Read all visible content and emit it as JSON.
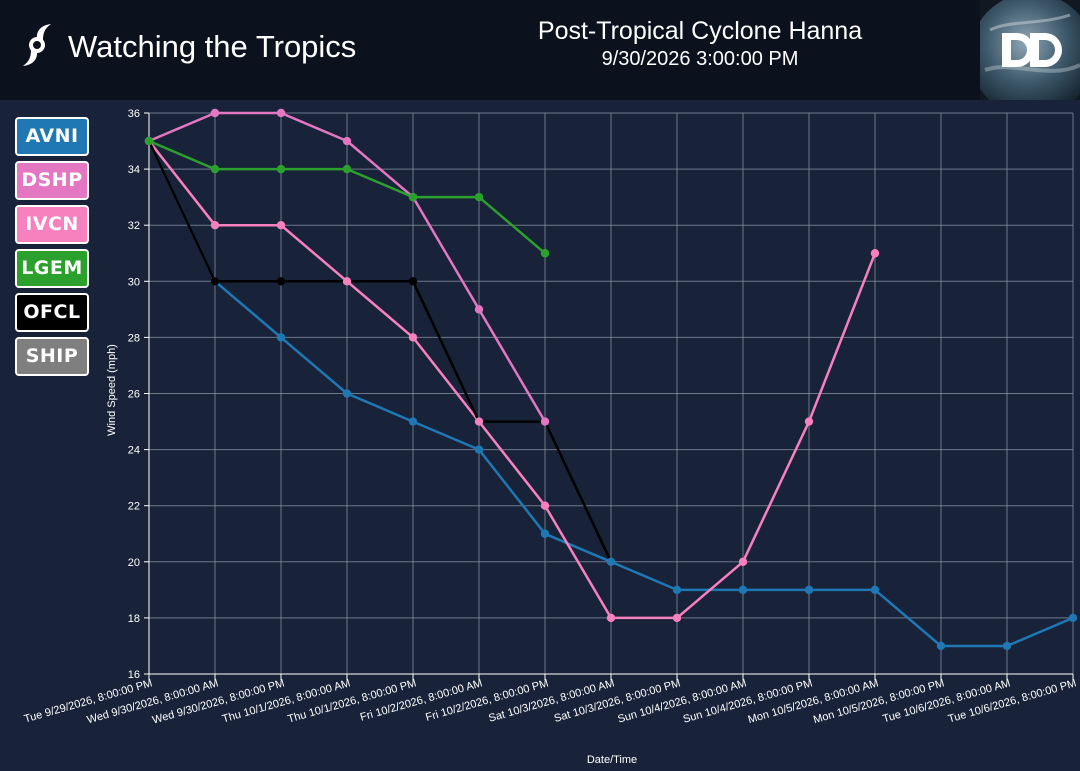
{
  "header": {
    "app_title": "Watching the Tropics",
    "app_icon": "hurricane-icon",
    "storm_name": "Post-Tropical Cyclone Hanna",
    "storm_time": "9/30/2026 3:00:00 PM",
    "logo_icon": "dd-logo-icon"
  },
  "legend": [
    {
      "label": "AVNI",
      "color": "#1f77b4"
    },
    {
      "label": "DSHP",
      "color": "#e377c2"
    },
    {
      "label": "IVCN",
      "color": "#f781bf"
    },
    {
      "label": "LGEM",
      "color": "#2ca02c"
    },
    {
      "label": "OFCL",
      "color": "#000000"
    },
    {
      "label": "SHIP",
      "color": "#7f7f7f"
    }
  ],
  "chart_data": {
    "type": "line",
    "xlabel": "Date/Time",
    "ylabel": "Wind Speed (mph)",
    "ylim": [
      16,
      36
    ],
    "yticks": [
      16,
      18,
      20,
      22,
      24,
      26,
      28,
      30,
      32,
      34,
      36
    ],
    "grid": true,
    "x": [
      "Tue 9/29/2026, 8:00:00 PM",
      "Wed 9/30/2026, 8:00:00 AM",
      "Wed 9/30/2026, 8:00:00 PM",
      "Thu 10/1/2026, 8:00:00 AM",
      "Thu 10/1/2026, 8:00:00 PM",
      "Fri 10/2/2026, 8:00:00 AM",
      "Fri 10/2/2026, 8:00:00 PM",
      "Sat 10/3/2026, 8:00:00 AM",
      "Sat 10/3/2026, 8:00:00 PM",
      "Sun 10/4/2026, 8:00:00 AM",
      "Sun 10/4/2026, 8:00:00 PM",
      "Mon 10/5/2026, 8:00:00 AM",
      "Mon 10/5/2026, 8:00:00 PM",
      "Tue 10/6/2026, 8:00:00 AM",
      "Tue 10/6/2026, 8:00:00 PM"
    ],
    "series": [
      {
        "name": "AVNI",
        "color": "#1f77b4",
        "marker": true,
        "values": [
          35,
          30,
          28,
          26,
          25,
          24,
          21,
          20,
          19,
          19,
          19,
          19,
          17,
          17,
          18
        ]
      },
      {
        "name": "DSHP",
        "color": "#e377c2",
        "marker": true,
        "values": [
          35,
          36,
          36,
          35,
          33,
          29,
          25,
          null,
          null,
          null,
          null,
          null,
          null,
          null,
          null
        ]
      },
      {
        "name": "IVCN",
        "color": "#f781bf",
        "marker": true,
        "values": [
          35,
          32,
          32,
          30,
          28,
          25,
          22,
          18,
          18,
          20,
          25,
          31,
          null,
          null,
          null
        ]
      },
      {
        "name": "LGEM",
        "color": "#2ca02c",
        "marker": true,
        "values": [
          35,
          34,
          34,
          34,
          33,
          33,
          31,
          null,
          null,
          null,
          null,
          null,
          null,
          null,
          null
        ]
      },
      {
        "name": "OFCL",
        "color": "#000000",
        "marker": true,
        "points": [
          [
            0,
            35
          ],
          [
            1,
            30
          ],
          [
            2,
            30
          ],
          [
            3,
            30
          ],
          [
            4,
            30
          ],
          [
            5,
            25
          ],
          [
            6,
            25
          ],
          [
            7,
            20
          ]
        ],
        "marker_indices": [
          1,
          2,
          4
        ]
      }
    ]
  }
}
